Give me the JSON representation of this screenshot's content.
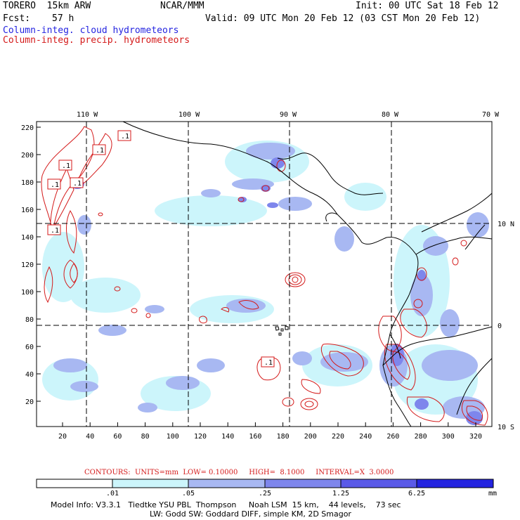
{
  "header": {
    "model": "TORERO  15km ARW",
    "org": "NCAR/MMM",
    "init": "Init: 00 UTC Sat 18 Feb 12",
    "fcst_label": "Fcst:",
    "fcst_value": "57 h",
    "valid": "Valid: 09 UTC Mon 20 Feb 12 (03 CST Mon 20 Feb 12)",
    "field1": "Column-integ. cloud hydrometeors",
    "field2": "Column-integ. precip. hydrometeors"
  },
  "colors": {
    "cloud_field": "#2424e0",
    "precip_field": "#d41a1a",
    "coast": "#000000"
  },
  "map": {
    "lon_labels": [
      "110 W",
      "100 W",
      "90 W",
      "80 W",
      "70 W"
    ],
    "lat_labels": [
      "10 N",
      "0",
      "10 S"
    ],
    "y_ticks": [
      "220",
      "200",
      "180",
      "160",
      "140",
      "120",
      "100",
      "80",
      "60",
      "40",
      "20"
    ],
    "x_ticks": [
      "20",
      "40",
      "60",
      "80",
      "100",
      "120",
      "140",
      "160",
      "180",
      "200",
      "220",
      "240",
      "260",
      "280",
      "300",
      "320"
    ],
    "contour_labels": [
      ".1",
      ".1",
      ".1",
      ".1",
      ".1",
      ".1",
      ".1"
    ]
  },
  "contours": {
    "text": "CONTOURS:  UNITS=mm  LOW= 0.10000     HIGH=  8.1000     INTERVAL=X  3.0000"
  },
  "colorbar": {
    "labels": [
      ".01",
      ".05",
      ".25",
      "1.25",
      "6.25"
    ],
    "unit": "mm",
    "colors": [
      "#ffffff",
      "#ccf5fb",
      "#a8b8f2",
      "#7e86ec",
      "#5a5ae8",
      "#2424e0"
    ]
  },
  "footer": {
    "line1": "Model Info: V3.3.1   Tiedtke YSU PBL  Thompson     Noah LSM  15 km,    44 levels,    73 sec",
    "line2": "LW: Godd SW: Goddard DIFF, simple KM, 2D Smagor"
  }
}
